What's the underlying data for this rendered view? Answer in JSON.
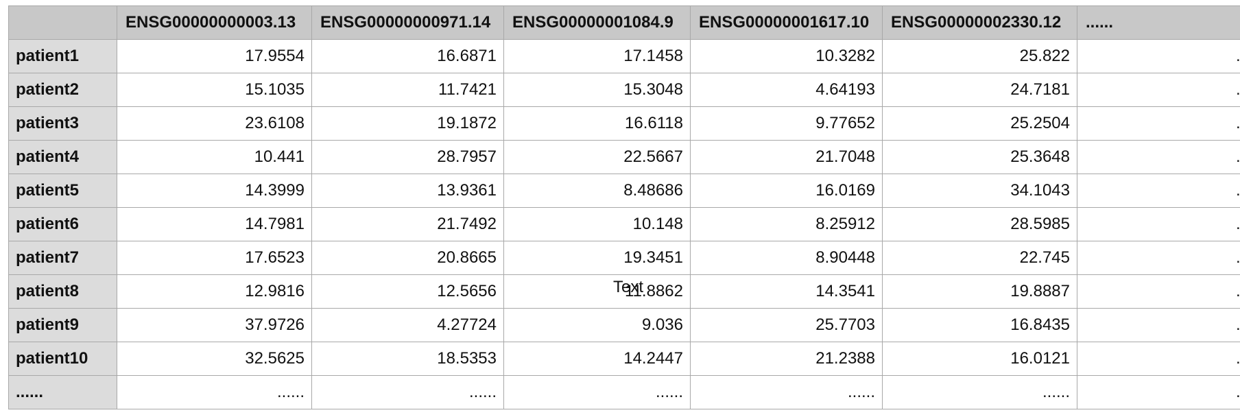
{
  "table": {
    "corner": "",
    "columns": [
      "ENSG00000000003.13",
      "ENSG00000000971.14",
      "ENSG00000001084.9",
      "ENSG00000001617.10",
      "ENSG00000002330.12",
      "......"
    ],
    "rows": [
      {
        "label": "patient1",
        "values": [
          "17.9554",
          "16.6871",
          "17.1458",
          "10.3282",
          "25.822",
          "......"
        ]
      },
      {
        "label": "patient2",
        "values": [
          "15.1035",
          "11.7421",
          "15.3048",
          "4.64193",
          "24.7181",
          "......"
        ]
      },
      {
        "label": "patient3",
        "values": [
          "23.6108",
          "19.1872",
          "16.6118",
          "9.77652",
          "25.2504",
          "......"
        ]
      },
      {
        "label": "patient4",
        "values": [
          "10.441",
          "28.7957",
          "22.5667",
          "21.7048",
          "25.3648",
          "......"
        ]
      },
      {
        "label": "patient5",
        "values": [
          "14.3999",
          "13.9361",
          "8.48686",
          "16.0169",
          "34.1043",
          "......"
        ]
      },
      {
        "label": "patient6",
        "values": [
          "14.7981",
          "21.7492",
          "10.148",
          "8.25912",
          "28.5985",
          "......"
        ]
      },
      {
        "label": "patient7",
        "values": [
          "17.6523",
          "20.8665",
          "19.3451",
          "8.90448",
          "22.745",
          "......"
        ]
      },
      {
        "label": "patient8",
        "values": [
          "12.9816",
          "12.5656",
          "11.8862",
          "14.3541",
          "19.8887",
          "......"
        ]
      },
      {
        "label": "patient9",
        "values": [
          "37.9726",
          "4.27724",
          "9.036",
          "25.7703",
          "16.8435",
          "......"
        ]
      },
      {
        "label": "patient10",
        "values": [
          "32.5625",
          "18.5353",
          "14.2447",
          "21.2388",
          "16.0121",
          "......"
        ]
      },
      {
        "label": "......",
        "values": [
          "......",
          "......",
          "......",
          "......",
          "......",
          "......"
        ]
      }
    ]
  },
  "overlay": {
    "text_box": "Text"
  }
}
